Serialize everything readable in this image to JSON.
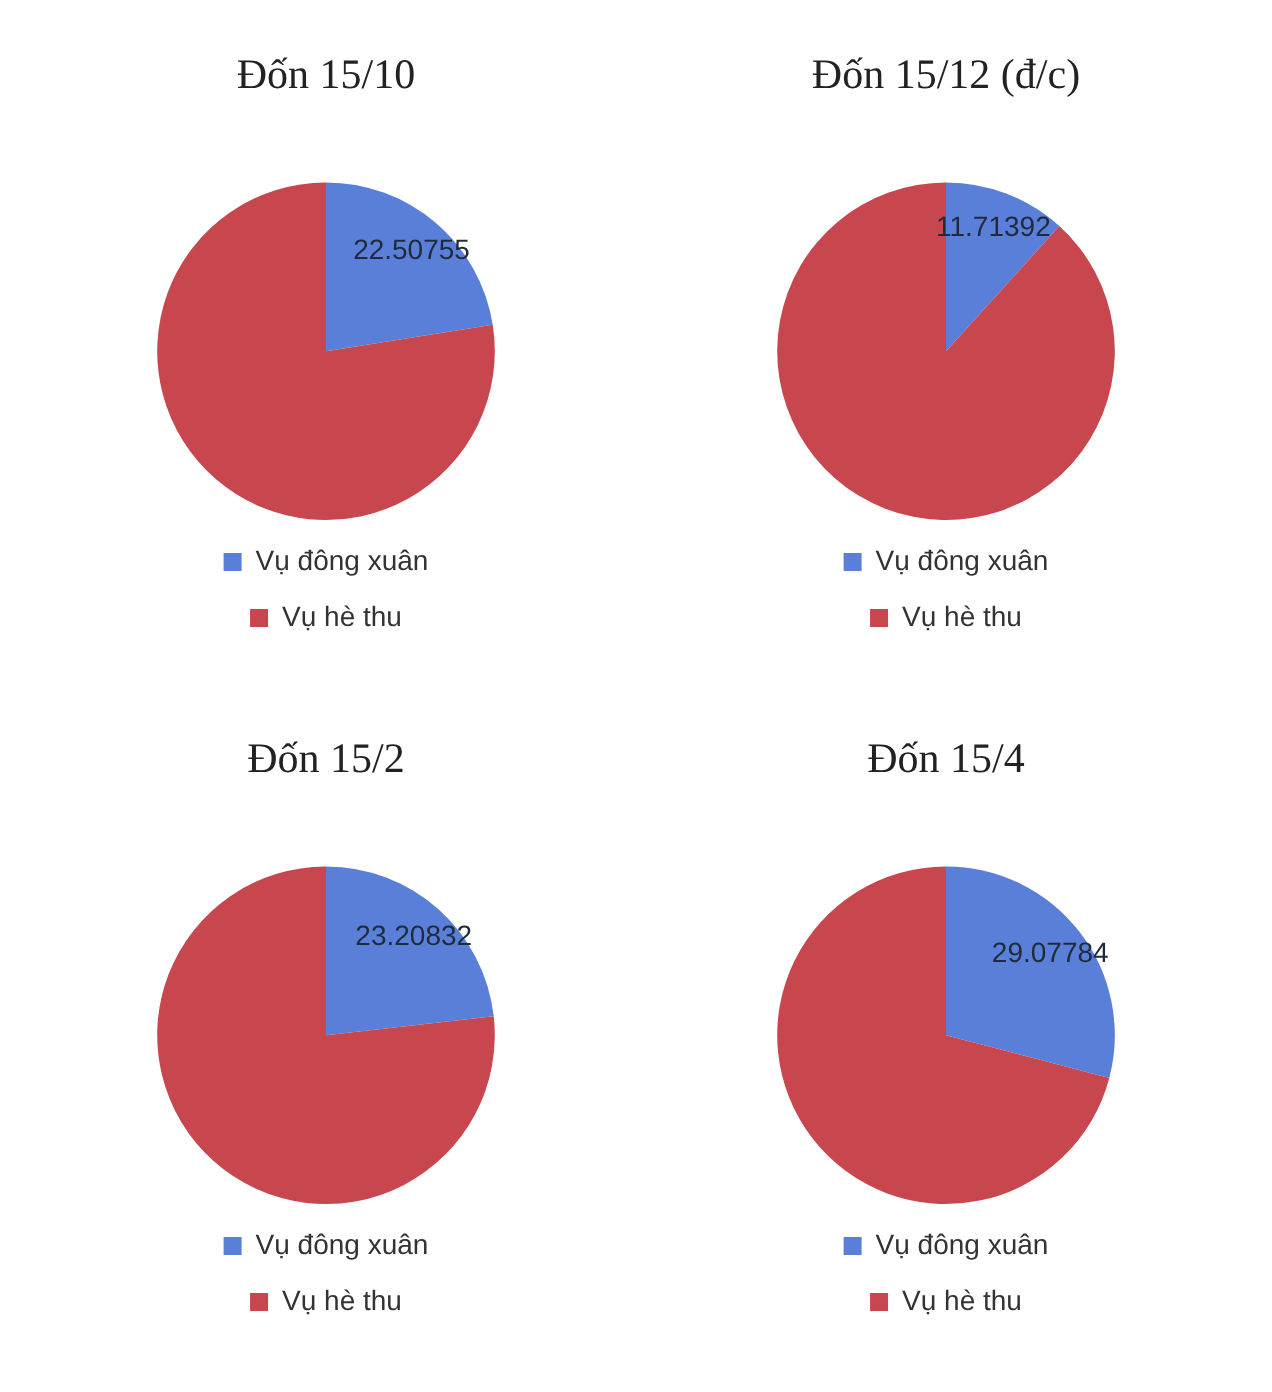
{
  "chart_data": [
    {
      "type": "pie",
      "title": "Đốn 15/10",
      "categories": [
        "Vụ đông xuân",
        "Vụ hè thu"
      ],
      "values": [
        22.50755,
        77.49245
      ],
      "colors": [
        "#5a7fd8",
        "#c8464e"
      ],
      "value_labels": [
        "22.50755",
        null
      ],
      "legend": "bottom"
    },
    {
      "type": "pie",
      "title": "Đốn 15/12 (đ/c)",
      "categories": [
        "Vụ đông xuân",
        "Vụ hè thu"
      ],
      "values": [
        11.71392,
        88.28608
      ],
      "colors": [
        "#5a7fd8",
        "#c8464e"
      ],
      "value_labels": [
        "11.71392",
        null
      ],
      "legend": "bottom"
    },
    {
      "type": "pie",
      "title": "Đốn 15/2",
      "categories": [
        "Vụ đông xuân",
        "Vụ hè thu"
      ],
      "values": [
        23.20832,
        76.79168
      ],
      "colors": [
        "#5a7fd8",
        "#c8464e"
      ],
      "value_labels": [
        "23.20832",
        null
      ],
      "legend": "bottom"
    },
    {
      "type": "pie",
      "title": "Đốn 15/4",
      "categories": [
        "Vụ đông xuân",
        "Vụ hè thu"
      ],
      "values": [
        29.07784,
        70.92216
      ],
      "colors": [
        "#5a7fd8",
        "#c8464e"
      ],
      "value_labels": [
        "29.07784",
        null
      ],
      "legend": "bottom"
    }
  ]
}
